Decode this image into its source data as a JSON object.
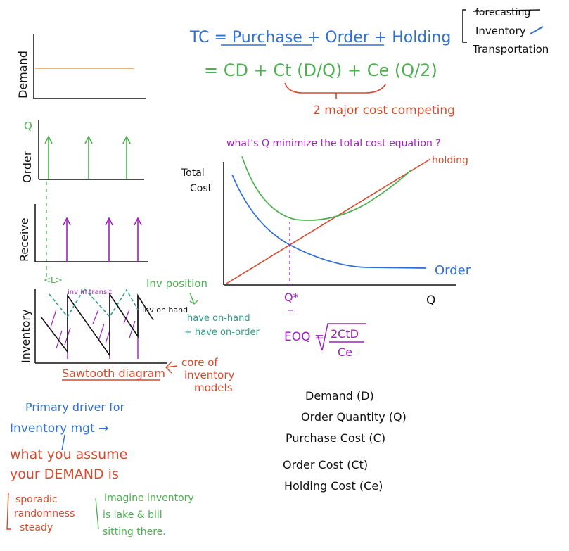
{
  "colors": {
    "ink": "#111111",
    "green": "#4caf50",
    "blue": "#2f6fd6",
    "red": "#d9482b",
    "purple": "#a020c0",
    "teal": "#2f9e86",
    "orange": "#d9a04a"
  },
  "top_right_note": {
    "struck_item": "forecasting",
    "items": [
      "Inventory",
      "Transportation"
    ]
  },
  "formula": {
    "line1": "TC = Purchase + Order + Holding",
    "line2": "= CD + Ct (D/Q) + Ce (Q/2)",
    "bracket_note": "2 major cost competing",
    "question": "what's Q minimize the total cost equation ?"
  },
  "left_charts": {
    "demand_label": "Demand",
    "order_label": "Order",
    "order_q_label": "Q",
    "receive_label": "Receive",
    "inventory_label": "Inventory",
    "lead_time_label": "<L>",
    "inv_in_transit": "inv in transit",
    "inv_on_hand": "Inv on hand",
    "inv_position": "Inv position",
    "position_def": [
      "have on-hand",
      "+ have on-order"
    ],
    "sawtooth_label": "Sawtooth diagram",
    "core_note": [
      "core of",
      "inventory",
      "models"
    ]
  },
  "cost_chart": {
    "y_label": [
      "Total",
      "Cost"
    ],
    "x_label": "Q",
    "q_star": "Q*",
    "holding_label": "holding",
    "order_label": "Order",
    "eoq": "EOQ = √(2CtD / Ce)",
    "eoq_lhs": "EOQ =",
    "eoq_num": "2CtD",
    "eoq_den": "Ce"
  },
  "bottom_left": {
    "drivers": [
      "Primary driver for",
      "Inventory mgt →"
    ],
    "assume": [
      "what you assume",
      "your DEMAND is"
    ],
    "demand_types": [
      "sporadic",
      "randomness",
      "steady"
    ],
    "imagine": [
      "Imagine inventory",
      "is lake & bill",
      "sitting there."
    ]
  },
  "legend_list": {
    "items": [
      "Demand (D)",
      "Order Quantity (Q)",
      "Purchase Cost (C)",
      "Order Cost (Ct)",
      "Holding Cost (Ce)"
    ]
  }
}
